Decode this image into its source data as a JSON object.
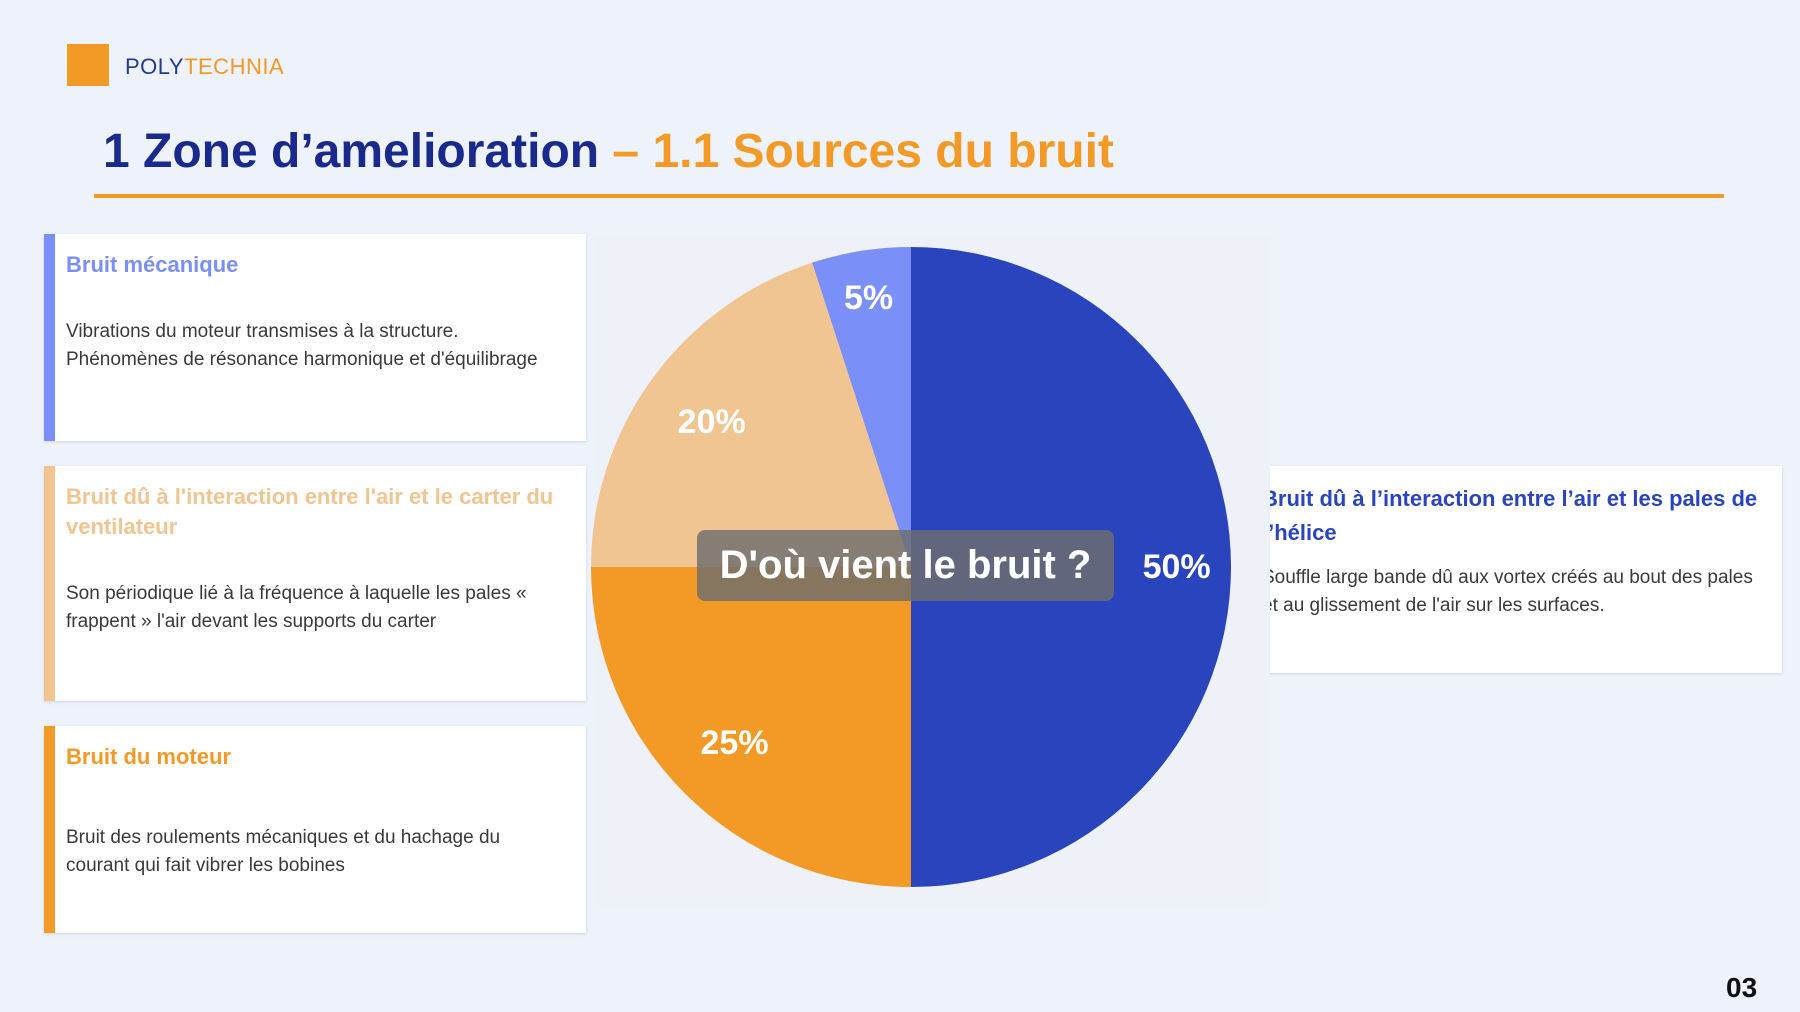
{
  "brand": {
    "part1": "POLY",
    "part2": "TECHNIA"
  },
  "title": {
    "section": "1 Zone d’amelioration",
    "subsection": "– 1.1 Sources du bruit"
  },
  "cards": {
    "mecanique": {
      "title": "Bruit mécanique",
      "description": "Vibrations du moteur transmises à la structure. Phénomènes de résonance harmonique et d'équilibrage"
    },
    "carter": {
      "title": "Bruit dû à l'interaction entre l'air et le carter du ventilateur",
      "description": "Son périodique lié à la fréquence à laquelle les pales « frappent » l'air devant les supports du carter"
    },
    "moteur": {
      "title": "Bruit du moteur",
      "description": "Bruit des roulements mécaniques et du hachage du courant qui fait vibrer les bobines"
    },
    "helice": {
      "title": "Bruit dû à l’interaction entre l’air et les pales de l’hélice",
      "description": "Souffle large bande dû aux vortex créés au bout des pales et au glissement de l'air sur les surfaces."
    }
  },
  "center_label": "D'où vient le bruit ?",
  "page_number": "03",
  "colors": {
    "helice": "#2a44bd",
    "moteur": "#f39a26",
    "carter": "#f0c591",
    "mecanique": "#7b8ff8"
  },
  "chart_data": {
    "type": "pie",
    "title": "",
    "start_angle_deg": 0,
    "direction": "clockwise",
    "slices": [
      {
        "label": "50%",
        "value": 50,
        "color": "#2a44bd"
      },
      {
        "label": "25%",
        "value": 25,
        "color": "#f39a26"
      },
      {
        "label": "20%",
        "value": 20,
        "color": "#f0c591"
      },
      {
        "label": "5%",
        "value": 5,
        "color": "#7b8ff8"
      }
    ]
  }
}
